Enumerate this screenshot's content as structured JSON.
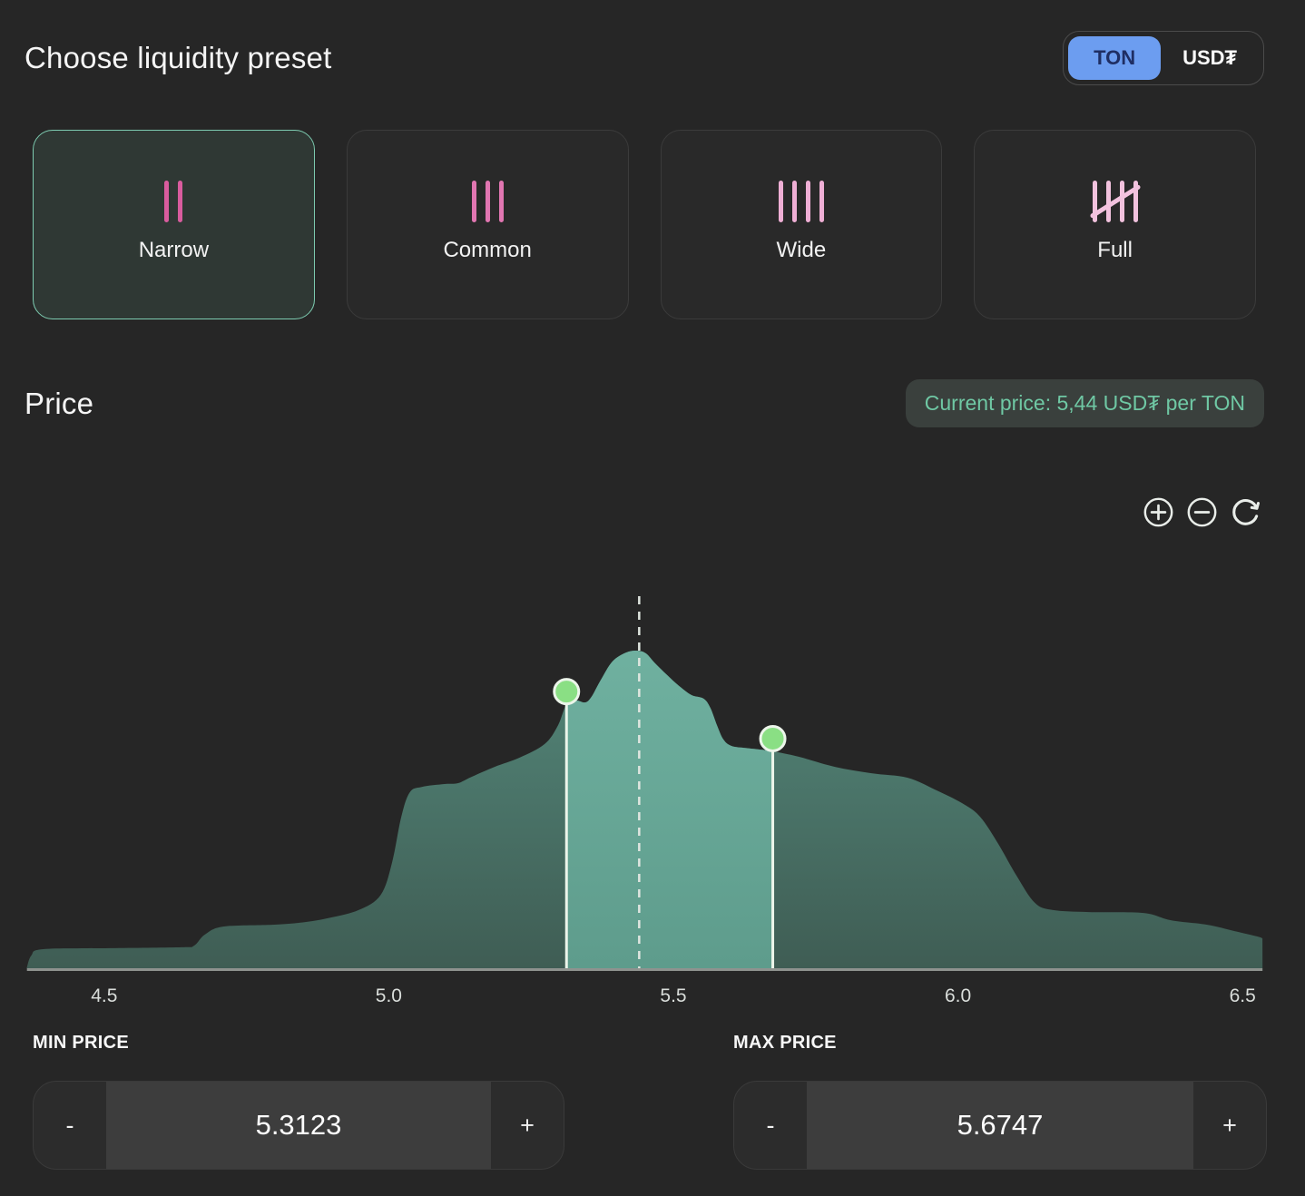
{
  "header": {
    "title": "Choose liquidity preset"
  },
  "currency_toggle": {
    "options": [
      {
        "label": "TON",
        "selected": true
      },
      {
        "label": "USD₮",
        "selected": false
      }
    ],
    "active_bg": "#6c9df0",
    "active_text": "#1f2e63"
  },
  "presets": [
    {
      "label": "Narrow",
      "bars": 2,
      "bar_color": "#d95c9e",
      "strike": false,
      "selected": true
    },
    {
      "label": "Common",
      "bars": 3,
      "bar_color": "#e176b1",
      "strike": false,
      "selected": false
    },
    {
      "label": "Wide",
      "bars": 4,
      "bar_color": "#efafd5",
      "strike": false,
      "selected": false
    },
    {
      "label": "Full",
      "bars": 4,
      "bar_color": "#f2c2de",
      "strike": true,
      "selected": false
    }
  ],
  "price_section": {
    "title": "Price",
    "current_price_badge": "Current price: 5,44 USD₮ per TON",
    "badge_text_color": "#6fc8a4"
  },
  "zoom_controls": {
    "zoom_in": "zoom-in",
    "zoom_out": "zoom-out",
    "reset": "reset"
  },
  "chart_data": {
    "type": "area",
    "x_ticks": [
      "4.5",
      "5.0",
      "5.5",
      "6.0",
      "6.5"
    ],
    "x_range": [
      4.3644,
      6.5351
    ],
    "y_range": [
      0,
      1
    ],
    "grid": false,
    "legend": false,
    "current_price": 5.44,
    "selected_range": {
      "min": 5.3123,
      "max": 5.6747
    },
    "colors": {
      "fill_top": "#578e80",
      "fill_bottom": "#3f5d54",
      "selected_fill_top": "#72b4a3",
      "selected_fill_bottom": "#5e9c8c",
      "handle_fill": "#8adf84",
      "handle_stroke": "#ecf5ea",
      "current_price_line": "#e0e6e0",
      "axis_line": "#8f938f",
      "tick_text": "#d9ddda"
    },
    "points": [
      [
        4.364,
        0.0
      ],
      [
        4.372,
        0.04
      ],
      [
        4.393,
        0.06
      ],
      [
        4.51,
        0.063
      ],
      [
        4.636,
        0.066
      ],
      [
        4.658,
        0.071
      ],
      [
        4.677,
        0.106
      ],
      [
        4.709,
        0.131
      ],
      [
        4.795,
        0.137
      ],
      [
        4.843,
        0.143
      ],
      [
        4.891,
        0.157
      ],
      [
        4.947,
        0.183
      ],
      [
        4.986,
        0.231
      ],
      [
        5.006,
        0.334
      ],
      [
        5.022,
        0.477
      ],
      [
        5.037,
        0.554
      ],
      [
        5.058,
        0.571
      ],
      [
        5.098,
        0.58
      ],
      [
        5.122,
        0.583
      ],
      [
        5.146,
        0.603
      ],
      [
        5.186,
        0.634
      ],
      [
        5.23,
        0.663
      ],
      [
        5.274,
        0.706
      ],
      [
        5.297,
        0.763
      ],
      [
        5.3123,
        0.831
      ],
      [
        5.329,
        0.843
      ],
      [
        5.345,
        0.837
      ],
      [
        5.356,
        0.854
      ],
      [
        5.372,
        0.906
      ],
      [
        5.393,
        0.966
      ],
      [
        5.417,
        0.994
      ],
      [
        5.436,
        1.0
      ],
      [
        5.452,
        0.991
      ],
      [
        5.468,
        0.96
      ],
      [
        5.489,
        0.923
      ],
      [
        5.51,
        0.889
      ],
      [
        5.532,
        0.86
      ],
      [
        5.553,
        0.849
      ],
      [
        5.565,
        0.82
      ],
      [
        5.577,
        0.763
      ],
      [
        5.588,
        0.72
      ],
      [
        5.602,
        0.7
      ],
      [
        5.624,
        0.694
      ],
      [
        5.65,
        0.689
      ],
      [
        5.6747,
        0.683
      ],
      [
        5.72,
        0.666
      ],
      [
        5.784,
        0.634
      ],
      [
        5.848,
        0.614
      ],
      [
        5.911,
        0.6
      ],
      [
        5.959,
        0.563
      ],
      [
        6.007,
        0.52
      ],
      [
        6.039,
        0.477
      ],
      [
        6.071,
        0.391
      ],
      [
        6.103,
        0.291
      ],
      [
        6.135,
        0.206
      ],
      [
        6.167,
        0.183
      ],
      [
        6.23,
        0.177
      ],
      [
        6.326,
        0.174
      ],
      [
        6.374,
        0.151
      ],
      [
        6.438,
        0.137
      ],
      [
        6.486,
        0.117
      ],
      [
        6.526,
        0.1
      ],
      [
        6.535,
        0.094
      ]
    ]
  },
  "min_price": {
    "label": "MIN PRICE",
    "value": "5.3123",
    "minus": "-",
    "plus": "+"
  },
  "max_price": {
    "label": "MAX PRICE",
    "value": "5.6747",
    "minus": "-",
    "plus": "+"
  }
}
